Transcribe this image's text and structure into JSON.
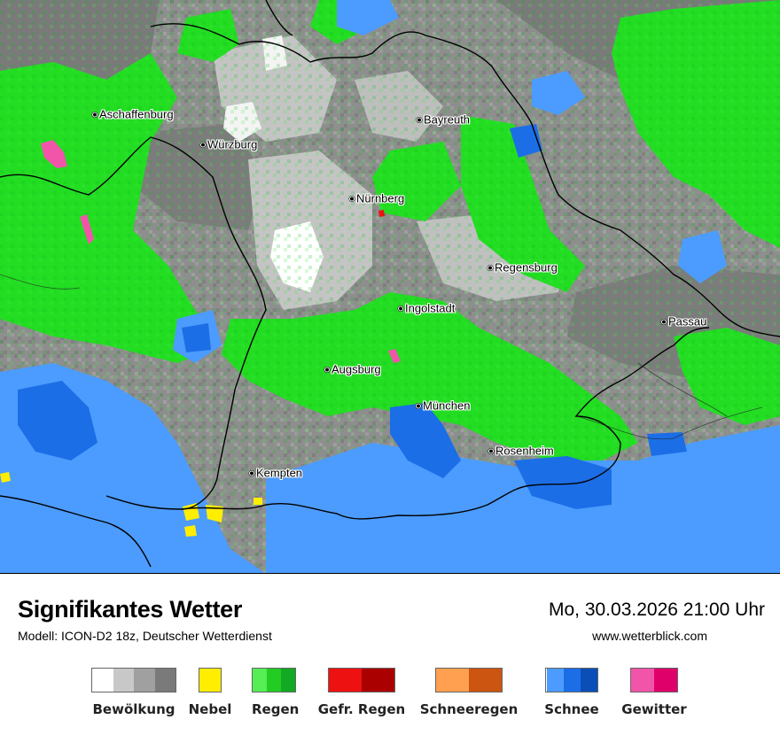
{
  "header": {
    "title": "Signifikantes Wetter",
    "model": "Modell: ICON-D2 18z, Deutscher Wetterdienst",
    "datetime": "Mo, 30.03.2026 21:00 Uhr",
    "website": "www.wetterblick.com"
  },
  "cities": [
    {
      "id": "aschaffenburg",
      "name": "Aschaffenburg"
    },
    {
      "id": "wuerzburg",
      "name": "Würzburg"
    },
    {
      "id": "bayreuth",
      "name": "Bayreuth"
    },
    {
      "id": "nuernberg",
      "name": "Nürnberg"
    },
    {
      "id": "regensburg",
      "name": "Regensburg"
    },
    {
      "id": "ingolstadt",
      "name": "Ingolstadt"
    },
    {
      "id": "passau",
      "name": "Passau"
    },
    {
      "id": "augsburg",
      "name": "Augsburg"
    },
    {
      "id": "muenchen",
      "name": "München"
    },
    {
      "id": "rosenheim",
      "name": "Rosenheim"
    },
    {
      "id": "kempten",
      "name": "Kempten"
    }
  ],
  "legend": [
    {
      "label": "Bewölkung",
      "colors": [
        "#ffffff",
        "#c8c8c8",
        "#a0a0a0",
        "#7a7a7a"
      ]
    },
    {
      "label": "Nebel",
      "colors": [
        "#ffee00"
      ]
    },
    {
      "label": "Regen",
      "colors": [
        "#55ee55",
        "#22cc22",
        "#11aa22"
      ]
    },
    {
      "label": "Gefr. Regen",
      "colors": [
        "#ee1111",
        "#aa0000"
      ]
    },
    {
      "label": "Schneeregen",
      "colors": [
        "#ffa050",
        "#cc5511"
      ]
    },
    {
      "label": "Schnee",
      "colors": [
        "#4c9cff",
        "#1c6ee6",
        "#0a4fb8"
      ]
    },
    {
      "label": "Gewitter",
      "colors": [
        "#f055aa",
        "#e0006a"
      ]
    }
  ],
  "map_colors": {
    "cloud_dark": "#7e7e7e",
    "cloud_mid": "#9c9c9c",
    "cloud_light": "#c4c4c4",
    "clear": "#ffffff",
    "rain": "#22dd22",
    "snow": "#4c9cff",
    "snow_heavy": "#1c6ee6",
    "fog": "#ffee00",
    "thunder": "#f055aa",
    "border": "#000000"
  }
}
